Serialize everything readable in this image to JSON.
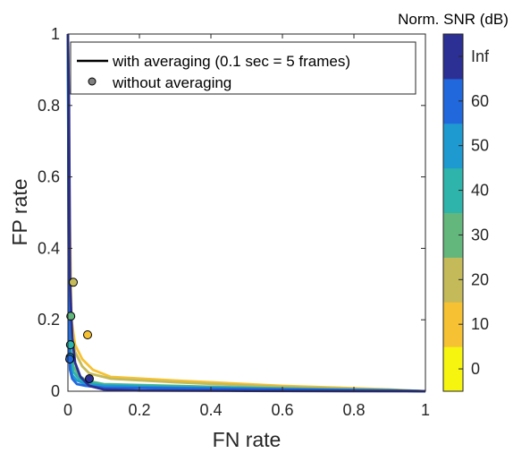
{
  "chart_data": {
    "type": "line",
    "xlabel": "FN rate",
    "ylabel": "FP rate",
    "xlim": [
      0,
      1
    ],
    "ylim": [
      0,
      1
    ],
    "xticks": [
      "0",
      "0.2",
      "0.4",
      "0.6",
      "0.8",
      "1"
    ],
    "yticks": [
      "0",
      "0.2",
      "0.4",
      "0.6",
      "0.8",
      "1"
    ],
    "grid": false,
    "legend": {
      "placement": "top-left",
      "entries": [
        {
          "label": "with averaging (0.1 sec = 5 frames)",
          "marker": "line"
        },
        {
          "label": "without averaging",
          "marker": "circle"
        }
      ]
    },
    "colorbar": {
      "title": "Norm. SNR (dB)",
      "labels": [
        "0",
        "10",
        "20",
        "30",
        "40",
        "50",
        "60",
        "Inf"
      ],
      "colors": [
        "#f5f50f",
        "#f6c234",
        "#c4ba5a",
        "#63b77c",
        "#2fb4ab",
        "#1f9ad0",
        "#2268dd",
        "#2c2f93"
      ]
    },
    "series": [
      {
        "snr": "10",
        "color": "#f6c234",
        "x": [
          0,
          0.005,
          0.01,
          0.02,
          0.04,
          0.07,
          0.12,
          0.3,
          0.6,
          0.9,
          1.0
        ],
        "y": [
          1,
          0.5,
          0.2,
          0.13,
          0.09,
          0.06,
          0.04,
          0.03,
          0.015,
          0.005,
          0
        ]
      },
      {
        "snr": "20",
        "color": "#c4ba5a",
        "x": [
          0,
          0.005,
          0.01,
          0.02,
          0.04,
          0.06,
          0.12,
          0.3,
          0.6,
          0.9,
          1.0
        ],
        "y": [
          1,
          0.4,
          0.16,
          0.11,
          0.07,
          0.05,
          0.035,
          0.025,
          0.012,
          0.004,
          0
        ]
      },
      {
        "snr": "30",
        "color": "#63b77c",
        "x": [
          0,
          0.004,
          0.008,
          0.015,
          0.03,
          0.05,
          0.1,
          0.3,
          0.6,
          0.9,
          1.0
        ],
        "y": [
          1,
          0.3,
          0.12,
          0.07,
          0.045,
          0.03,
          0.02,
          0.015,
          0.008,
          0.003,
          0
        ]
      },
      {
        "snr": "40",
        "color": "#2fb4ab",
        "x": [
          0,
          0.004,
          0.008,
          0.015,
          0.03,
          0.05,
          0.1,
          0.3,
          0.6,
          0.9,
          1.0
        ],
        "y": [
          1,
          0.25,
          0.1,
          0.055,
          0.035,
          0.025,
          0.018,
          0.013,
          0.007,
          0.002,
          0
        ]
      },
      {
        "snr": "50",
        "color": "#1f9ad0",
        "x": [
          0,
          0.003,
          0.006,
          0.012,
          0.025,
          0.05,
          0.1,
          0.3,
          0.6,
          0.9,
          1.0
        ],
        "y": [
          1,
          0.2,
          0.08,
          0.045,
          0.03,
          0.02,
          0.015,
          0.01,
          0.006,
          0.002,
          0
        ]
      },
      {
        "snr": "60",
        "color": "#2268dd",
        "x": [
          0,
          0.003,
          0.006,
          0.012,
          0.025,
          0.05,
          0.1,
          0.3,
          0.6,
          0.9,
          1.0
        ],
        "y": [
          1,
          0.15,
          0.06,
          0.035,
          0.02,
          0.015,
          0.01,
          0.008,
          0.005,
          0.002,
          0
        ]
      },
      {
        "snr": "Inf",
        "color": "#2c2f93",
        "x": [
          0,
          0.003,
          0.006,
          0.012,
          0.02,
          0.035,
          0.06,
          0.1,
          0.2,
          0.5,
          1.0
        ],
        "y": [
          1,
          0.8,
          0.3,
          0.15,
          0.08,
          0.04,
          0.015,
          0.005,
          0.002,
          0.001,
          0
        ]
      }
    ],
    "points": [
      {
        "snr": "10",
        "color": "#f6c234",
        "x": 0.055,
        "y": 0.158
      },
      {
        "snr": "20",
        "color": "#c4ba5a",
        "x": 0.015,
        "y": 0.305
      },
      {
        "snr": "30",
        "color": "#63b77c",
        "x": 0.008,
        "y": 0.21
      },
      {
        "snr": "40",
        "color": "#2fb4ab",
        "x": 0.007,
        "y": 0.13
      },
      {
        "snr": "50",
        "color": "#1f9ad0",
        "x": 0.006,
        "y": 0.095
      },
      {
        "snr": "60",
        "color": "#2268dd",
        "x": 0.005,
        "y": 0.09
      },
      {
        "snr": "Inf",
        "color": "#2c2f93",
        "x": 0.06,
        "y": 0.035
      }
    ]
  }
}
